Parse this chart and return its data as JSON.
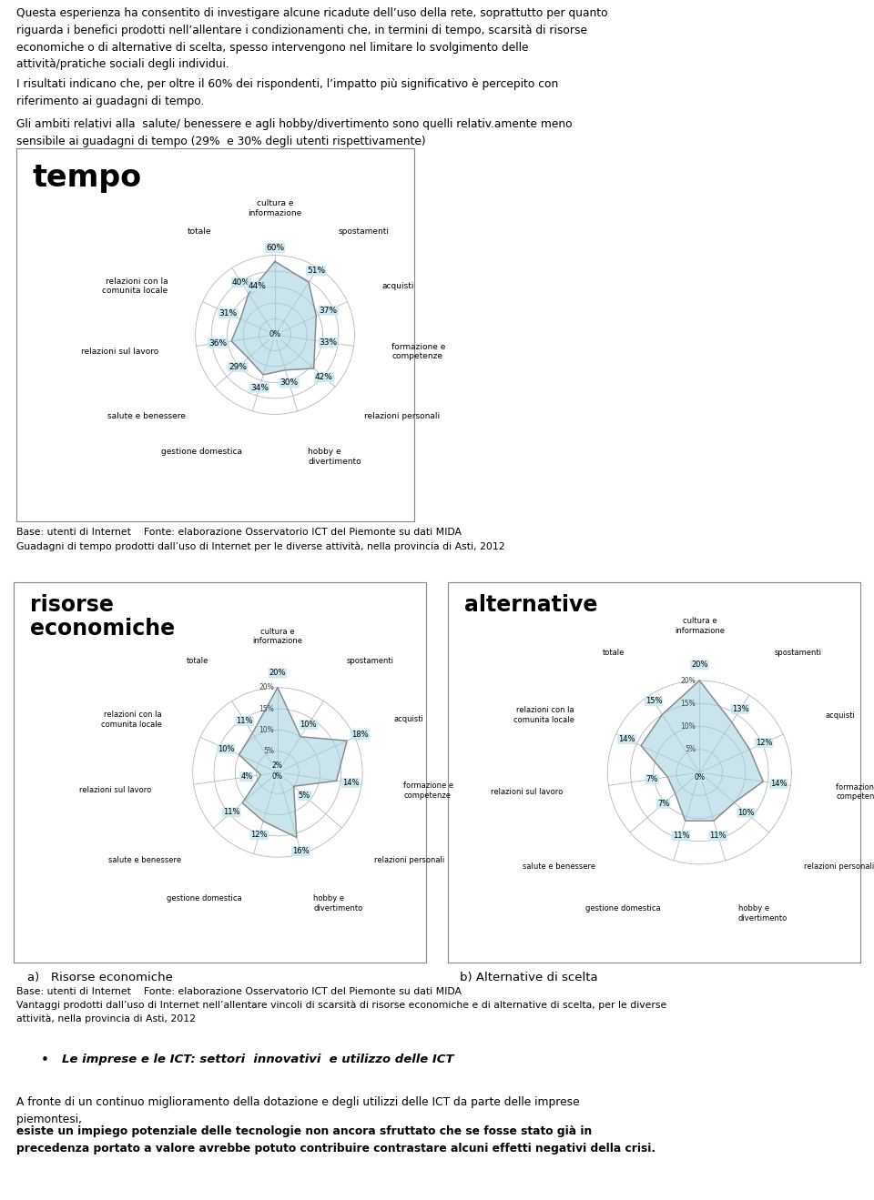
{
  "text1": "Questa esperienza ha consentito di investigare alcune ricadute dell’uso della rete, soprattutto per quanto\nriguarda i benefici prodotti nell’allentare i condizionamenti che, in termini di tempo, scarsità di risorse\neconomiche o di alternative di scelta, spesso intervengono nel limitare lo svolgimento delle\nattività/pratiche sociali degli individui.",
  "text2": "I risultati indicano che, per oltre il 60% dei rispondenti, l’impatto più significativo è percepito con\nriferimento ai guadagni di tempo.",
  "text3": "Gli ambiti relativi alla  salute/ benessere e agli hobby/divertimento sono quelli relativ.amente meno\nsensibile ai guadagni di tempo (29%  e 30% degli utenti rispettivamente)",
  "cats": [
    "cultura e\ninformazione",
    "spostamenti",
    "acquisti",
    "formazione e\ncompetenze",
    "relazioni personali",
    "hobby e\ndivertimento",
    "gestione domestica",
    "salute e benessere",
    "relazioni sul lavoro",
    "relazioni con la\ncomunita locale",
    "totale"
  ],
  "vals1": [
    60,
    51,
    37,
    33,
    42,
    30,
    34,
    29,
    36,
    31,
    40
  ],
  "lbls1": [
    "60%",
    "51%",
    "37%",
    "33%",
    "42%",
    "30%",
    "34%",
    "29%",
    "36%",
    "31%",
    "40%"
  ],
  "extra1": "44%",
  "vals2": [
    20,
    10,
    18,
    14,
    5,
    16,
    12,
    11,
    4,
    10,
    11
  ],
  "lbls2": [
    "20%",
    "10%",
    "18%",
    "14%",
    "5%",
    "16%",
    "12%",
    "11%",
    "4%",
    "10%",
    "11%"
  ],
  "vals3": [
    20,
    13,
    12,
    14,
    10,
    11,
    11,
    7,
    7,
    14,
    15
  ],
  "lbls3": [
    "20%",
    "13%",
    "12%",
    "14%",
    "10%",
    "11%",
    "11%",
    "7%",
    "7%",
    "14%",
    "15%"
  ],
  "cap1a": "Base: utenti di Internet    Fonte: elaborazione Osservatorio ICT del Piemonte su dati MIDA",
  "cap1b": "Guadagni di tempo prodotti dall’uso di Internet per le diverse attività, nella provincia di Asti, 2012",
  "cap2a": "Base: utenti di Internet    Fonte: elaborazione Osservatorio ICT del Piemonte su dati MIDA",
  "cap2b": "Vantaggi prodotti dall’uso di Internet nell’allentare vincoli di scarsità di risorse economiche e di alternative di scelta, per le diverse\nattività, nella provincia di Asti, 2012",
  "lbl_a": "a)   Risorse economiche",
  "lbl_b": "b) Alternative di scelta",
  "bullet": "Le imprese e le ICT: settori  innovativi  e utilizzo delle ICT",
  "text4a": "A fronte di un continuo miglioramento della dotazione e degli utilizzi delle ICT da parte delle imprese\npiemontesi, ",
  "text4b": "esiste un impiego potenziale delle tecnologie non ancora sfruttato che se fosse stato già in\nprecedenza portato a valore avrebbe potuto contribuire contrastare alcuni effetti negativi della crisi.",
  "fill_color": "#9dcfdf",
  "line_color": "#888888",
  "box_color": "#c8e8f0",
  "grid_color": "#aaaaaa"
}
